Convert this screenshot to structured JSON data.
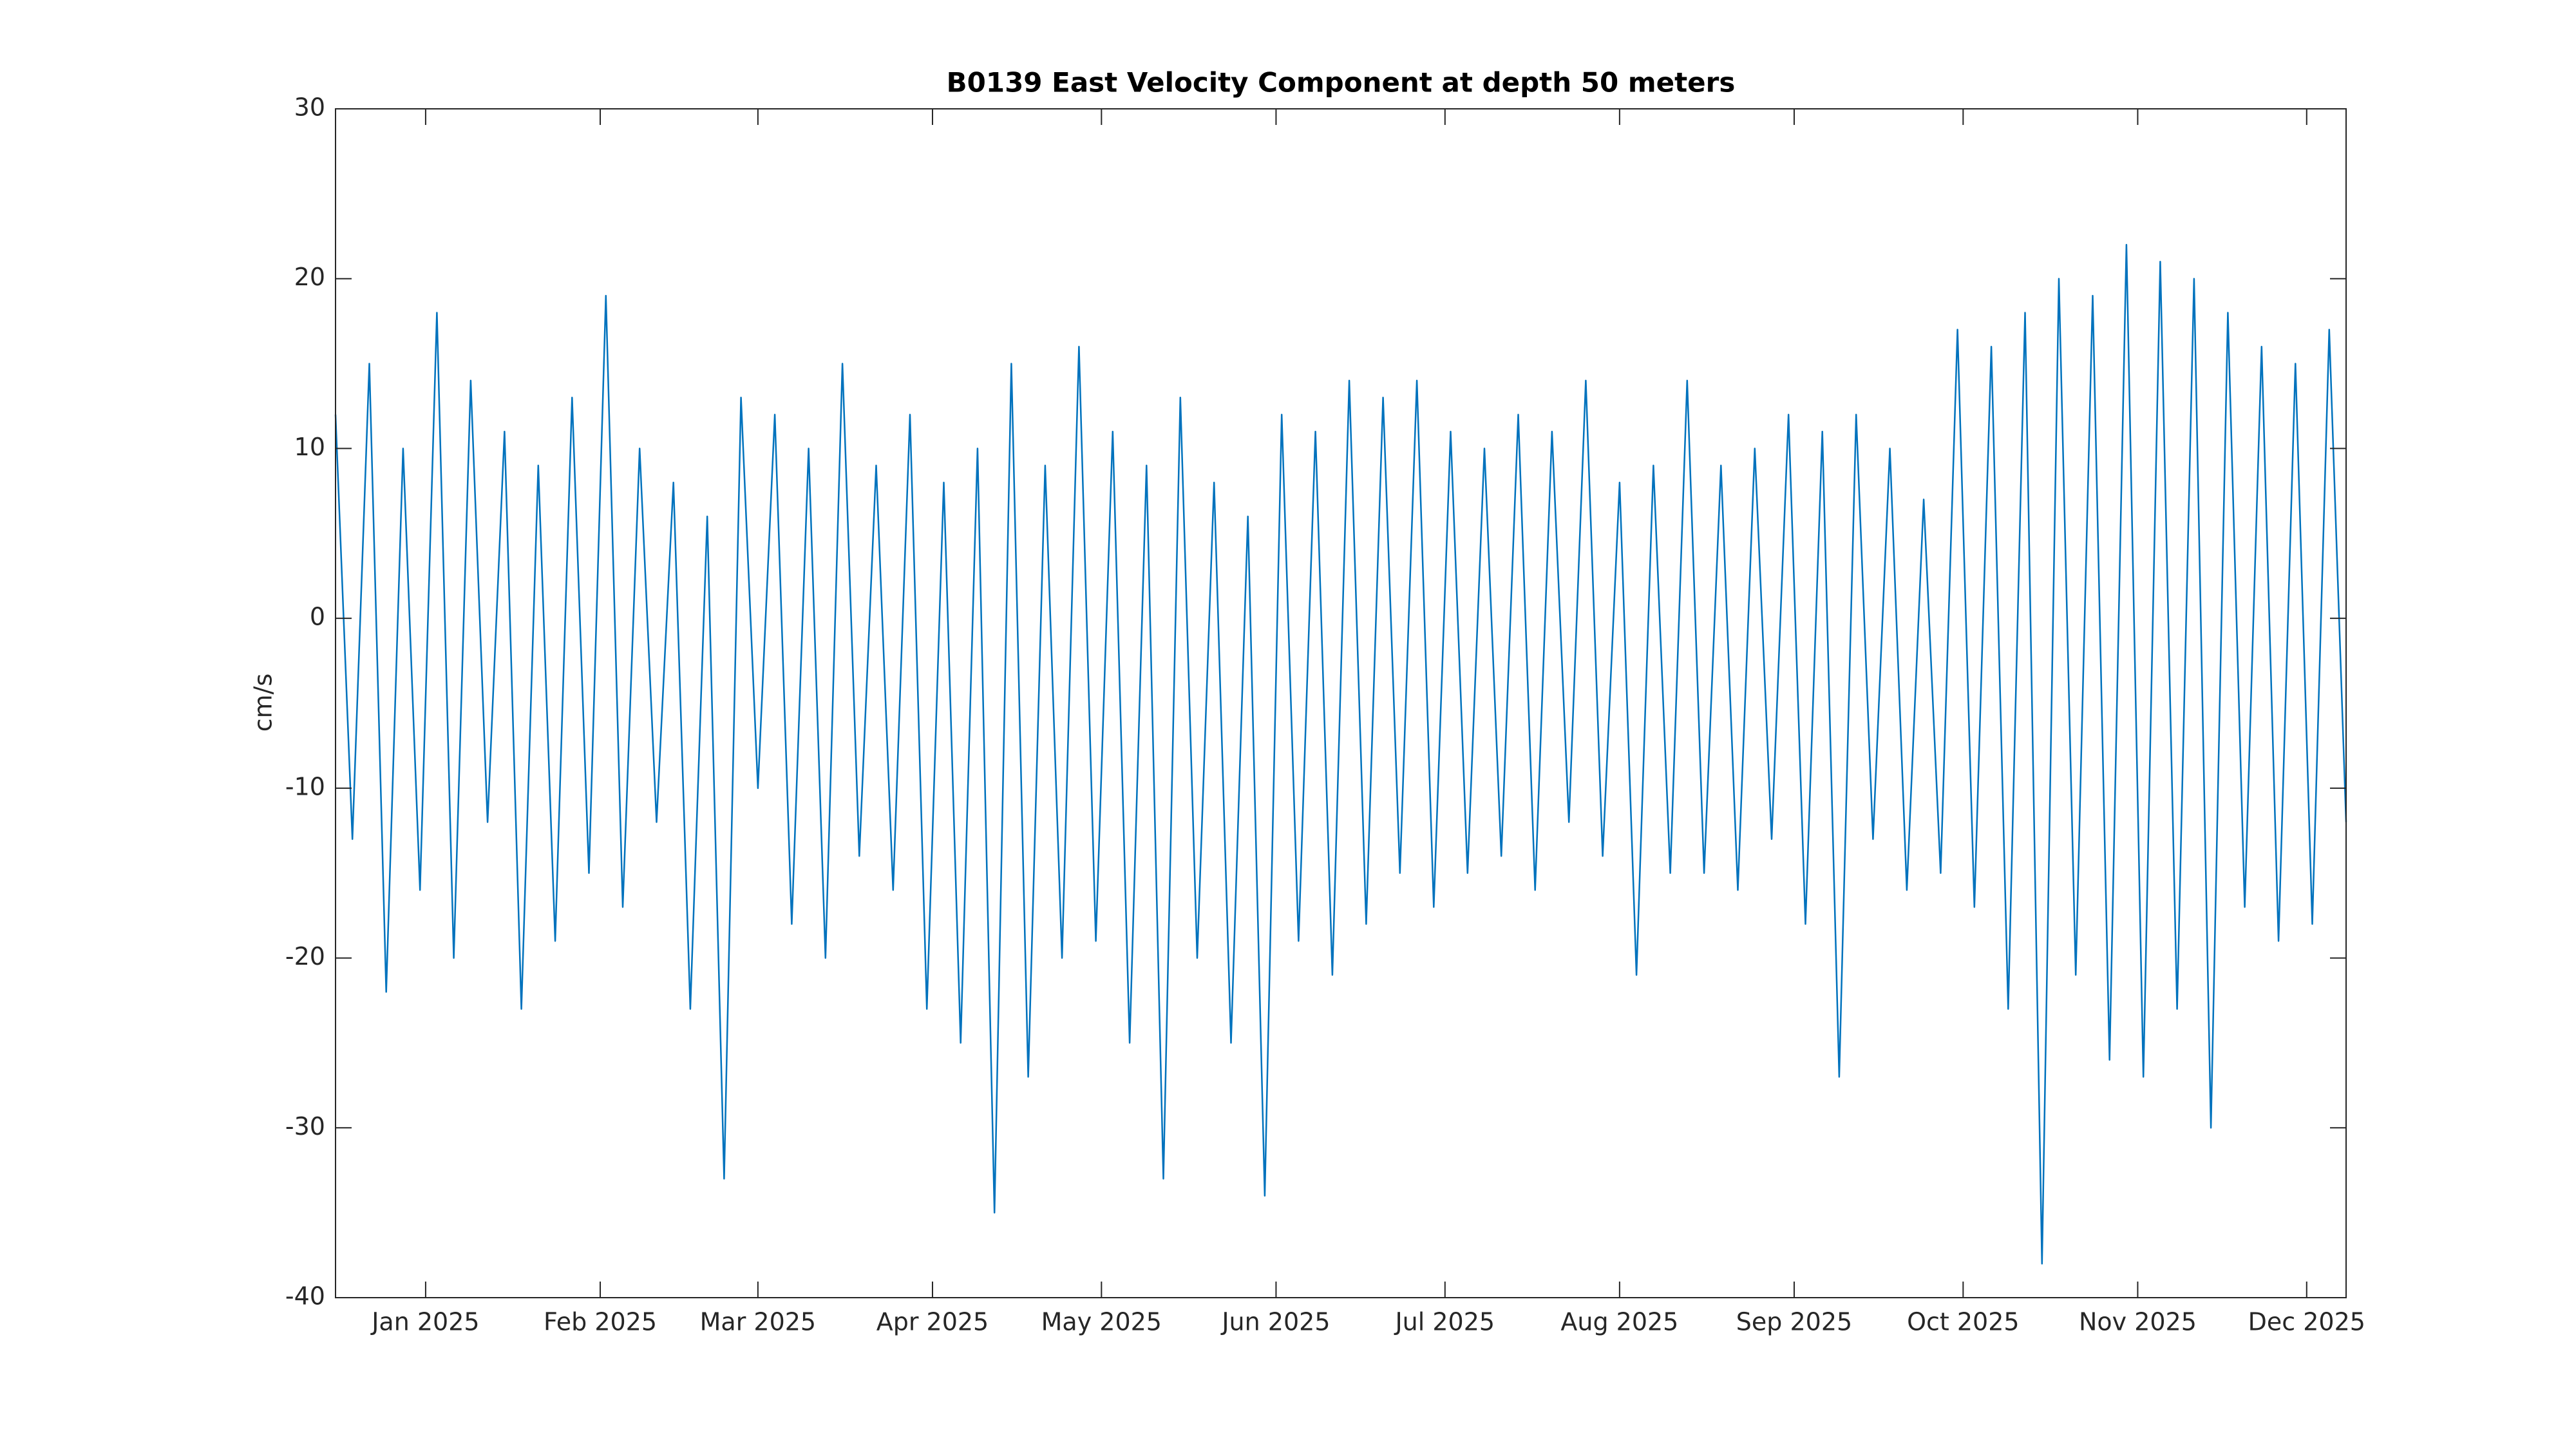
{
  "chart_data": {
    "type": "line",
    "title": "B0139 East Velocity Component at depth 50 meters",
    "ylabel": "cm/s",
    "x": [
      -16,
      -13,
      -10,
      -7,
      -4,
      -1,
      2,
      5,
      8,
      11,
      14,
      17,
      20,
      23,
      26,
      29,
      32,
      35,
      38,
      41,
      44,
      47,
      50,
      53,
      56,
      59,
      62,
      65,
      68,
      71,
      74,
      77,
      80,
      83,
      86,
      89,
      92,
      95,
      98,
      101,
      104,
      107,
      110,
      113,
      116,
      119,
      122,
      125,
      128,
      131,
      134,
      137,
      140,
      143,
      146,
      149,
      152,
      155,
      158,
      161,
      164,
      167,
      170,
      173,
      176,
      179,
      182,
      185,
      188,
      191,
      194,
      197,
      200,
      203,
      206,
      209,
      212,
      215,
      218,
      221,
      224,
      227,
      230,
      233,
      236,
      239,
      242,
      245,
      248,
      251,
      254,
      257,
      260,
      263,
      266,
      269,
      272,
      275,
      278,
      281,
      284,
      287,
      290,
      293,
      296,
      299,
      302,
      305,
      308,
      311,
      314,
      317,
      320,
      323,
      326,
      329,
      332,
      335,
      338,
      341
    ],
    "series": [
      {
        "name": "East Velocity",
        "color": "#0072bd",
        "values": [
          12,
          -13,
          15,
          -22,
          10,
          -16,
          18,
          -20,
          14,
          -12,
          11,
          -23,
          9,
          -19,
          13,
          -15,
          19,
          -17,
          10,
          -12,
          8,
          -23,
          6,
          -33,
          13,
          -10,
          12,
          -18,
          10,
          -20,
          15,
          -14,
          9,
          -16,
          12,
          -23,
          8,
          -25,
          10,
          -35,
          15,
          -27,
          9,
          -20,
          16,
          -19,
          11,
          -25,
          9,
          -33,
          13,
          -20,
          8,
          -25,
          6,
          -34,
          12,
          -19,
          11,
          -21,
          14,
          -18,
          13,
          -15,
          14,
          -17,
          11,
          -15,
          10,
          -14,
          12,
          -16,
          11,
          -12,
          14,
          -14,
          8,
          -21,
          9,
          -15,
          14,
          -15,
          9,
          -16,
          10,
          -13,
          12,
          -18,
          11,
          -27,
          12,
          -13,
          10,
          -16,
          7,
          -15,
          17,
          -17,
          16,
          -23,
          18,
          -38,
          20,
          -21,
          19,
          -26,
          22,
          -27,
          21,
          -23,
          20,
          -30,
          18,
          -17,
          16,
          -19,
          15,
          -18,
          17,
          -12
        ]
      }
    ],
    "xlim": [
      -16,
      341
    ],
    "xticks": [
      {
        "value": 0,
        "label": "Jan 2025"
      },
      {
        "value": 31,
        "label": "Feb 2025"
      },
      {
        "value": 59,
        "label": "Mar 2025"
      },
      {
        "value": 90,
        "label": "Apr 2025"
      },
      {
        "value": 120,
        "label": "May 2025"
      },
      {
        "value": 151,
        "label": "Jun 2025"
      },
      {
        "value": 181,
        "label": "Jul 2025"
      },
      {
        "value": 212,
        "label": "Aug 2025"
      },
      {
        "value": 243,
        "label": "Sep 2025"
      },
      {
        "value": 273,
        "label": "Oct 2025"
      },
      {
        "value": 304,
        "label": "Nov 2025"
      },
      {
        "value": 334,
        "label": "Dec 2025"
      }
    ],
    "ylim": [
      -40,
      30
    ],
    "yticks": [
      -40,
      -30,
      -20,
      -10,
      0,
      10,
      20,
      30
    ]
  }
}
